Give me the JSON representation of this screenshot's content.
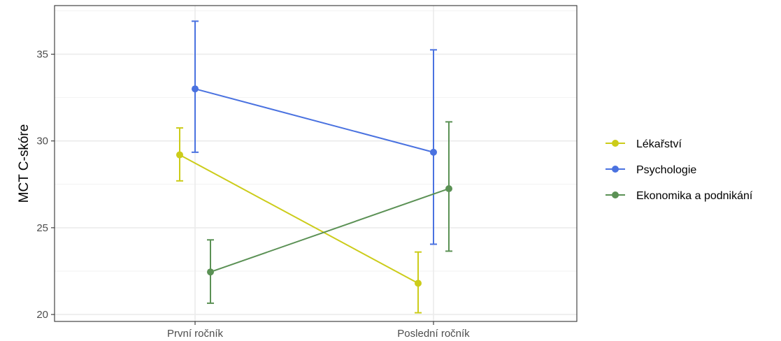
{
  "chart_data": {
    "type": "line",
    "title": "",
    "xlabel": "",
    "ylabel": "MCT C-skóre",
    "categories": [
      "První ročník",
      "Poslední ročník"
    ],
    "ylim": [
      19.6,
      37.8
    ],
    "yticks": [
      20,
      25,
      30,
      35
    ],
    "grid": true,
    "legend_position": "right",
    "series": [
      {
        "name": "Lékařství",
        "color": "#cccc1a",
        "values": [
          29.2,
          21.8
        ],
        "lower": [
          27.7,
          20.1
        ],
        "upper": [
          30.75,
          23.6
        ]
      },
      {
        "name": "Psychologie",
        "color": "#4a72e0",
        "values": [
          33.0,
          29.35
        ],
        "lower": [
          29.35,
          24.05
        ],
        "upper": [
          36.9,
          35.25
        ]
      },
      {
        "name": "Ekonomika a podnikání",
        "color": "#5b9155",
        "values": [
          22.45,
          27.25
        ],
        "lower": [
          20.65,
          23.65
        ],
        "upper": [
          24.3,
          31.1
        ]
      }
    ]
  }
}
